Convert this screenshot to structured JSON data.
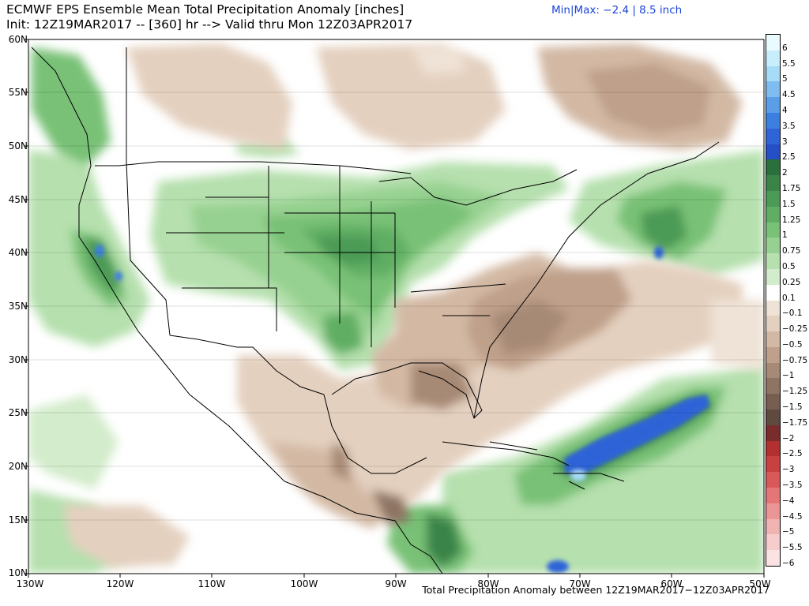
{
  "header": {
    "title_line1": "ECMWF EPS Ensemble Mean Total Precipitation Anomaly [inches]",
    "title_line2": "Init: 12Z19MAR2017 -- [360] hr --> Valid thru Mon 12Z03APR2017",
    "minmax": "Min|Max: −2.4 | 8.5 inch"
  },
  "footer": "Total Precipitation Anomaly between 12Z19MAR2017−12Z03APR2017",
  "axes": {
    "lat_labels": [
      "60N",
      "55N",
      "50N",
      "45N",
      "40N",
      "35N",
      "30N",
      "25N",
      "20N",
      "15N",
      "10N"
    ],
    "lon_labels": [
      "130W",
      "120W",
      "110W",
      "100W",
      "90W",
      "80W",
      "70W",
      "60W",
      "50W"
    ]
  },
  "colorbar": {
    "levels": [
      {
        "label": "6",
        "color": "#e9fbff"
      },
      {
        "label": "5.5",
        "color": "#c8eefc"
      },
      {
        "label": "5",
        "color": "#a6dcf7"
      },
      {
        "label": "4.5",
        "color": "#7fbdf0"
      },
      {
        "label": "4",
        "color": "#5a9ee8"
      },
      {
        "label": "3.5",
        "color": "#3c7fe0"
      },
      {
        "label": "3",
        "color": "#2e64d8"
      },
      {
        "label": "2.5",
        "color": "#244fc6"
      },
      {
        "label": "2",
        "color": "#2b6f3a"
      },
      {
        "label": "1.75",
        "color": "#3a8448"
      },
      {
        "label": "1.5",
        "color": "#4b9a55"
      },
      {
        "label": "1.25",
        "color": "#5fae64"
      },
      {
        "label": "1",
        "color": "#78c176"
      },
      {
        "label": "0.75",
        "color": "#97d191"
      },
      {
        "label": "0.5",
        "color": "#b6e0ae"
      },
      {
        "label": "0.25",
        "color": "#d3eccb"
      },
      {
        "label": "0.1",
        "color": "#ffffff"
      },
      {
        "label": "−0.1",
        "color": "#efe2d6"
      },
      {
        "label": "−0.25",
        "color": "#e4d0bf"
      },
      {
        "label": "−0.5",
        "color": "#d3b9a4"
      },
      {
        "label": "−0.75",
        "color": "#bfa08a"
      },
      {
        "label": "−1",
        "color": "#a78a76"
      },
      {
        "label": "−1.25",
        "color": "#8e7463"
      },
      {
        "label": "−1.5",
        "color": "#765f51"
      },
      {
        "label": "−1.75",
        "color": "#5e4a3f"
      },
      {
        "label": "−2",
        "color": "#7a2b2b"
      },
      {
        "label": "−2.5",
        "color": "#b23030"
      },
      {
        "label": "−3",
        "color": "#c94040"
      },
      {
        "label": "−3.5",
        "color": "#d95858"
      },
      {
        "label": "−4",
        "color": "#e57676"
      },
      {
        "label": "−4.5",
        "color": "#ec9595"
      },
      {
        "label": "−5",
        "color": "#f2b3b3"
      },
      {
        "label": "−5.5",
        "color": "#f7cccc"
      },
      {
        "label": "−6",
        "color": "#fbe3e3"
      }
    ]
  }
}
